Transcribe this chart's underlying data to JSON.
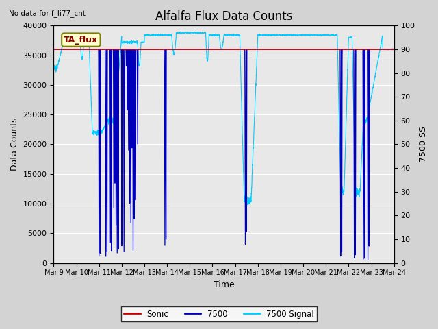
{
  "title": "Alfalfa Flux Data Counts",
  "upper_left_text": "No data for f_li77_cnt",
  "annotation_box": "TA_flux",
  "xlabel": "Time",
  "ylabel_left": "Data Counts",
  "ylabel_right": "7500 SS",
  "ylim_left": [
    0,
    40000
  ],
  "ylim_right": [
    0,
    100
  ],
  "yticks_left": [
    0,
    5000,
    10000,
    15000,
    20000,
    25000,
    30000,
    35000,
    40000
  ],
  "yticks_right": [
    0,
    10,
    20,
    30,
    40,
    50,
    60,
    70,
    80,
    90,
    100
  ],
  "xtick_labels": [
    "Mar 9",
    "Mar 10",
    "Mar 11",
    "Mar 12",
    "Mar 13",
    "Mar 14",
    "Mar 15",
    "Mar 16",
    "Mar 17",
    "Mar 18",
    "Mar 19",
    "Mar 20",
    "Mar 21",
    "Mar 22",
    "Mar 23",
    "Mar 24"
  ],
  "sonic_color": "#cc0000",
  "blue7500_color": "#0000bb",
  "cyan_signal_color": "#00ccff",
  "background_color": "#d3d3d3",
  "plot_bg_color": "#e8e8e8",
  "sonic_level": 36000,
  "title_fontsize": 12,
  "label_fontsize": 9,
  "tick_fontsize": 8,
  "figwidth": 6.4,
  "figheight": 4.8,
  "dpi": 100
}
